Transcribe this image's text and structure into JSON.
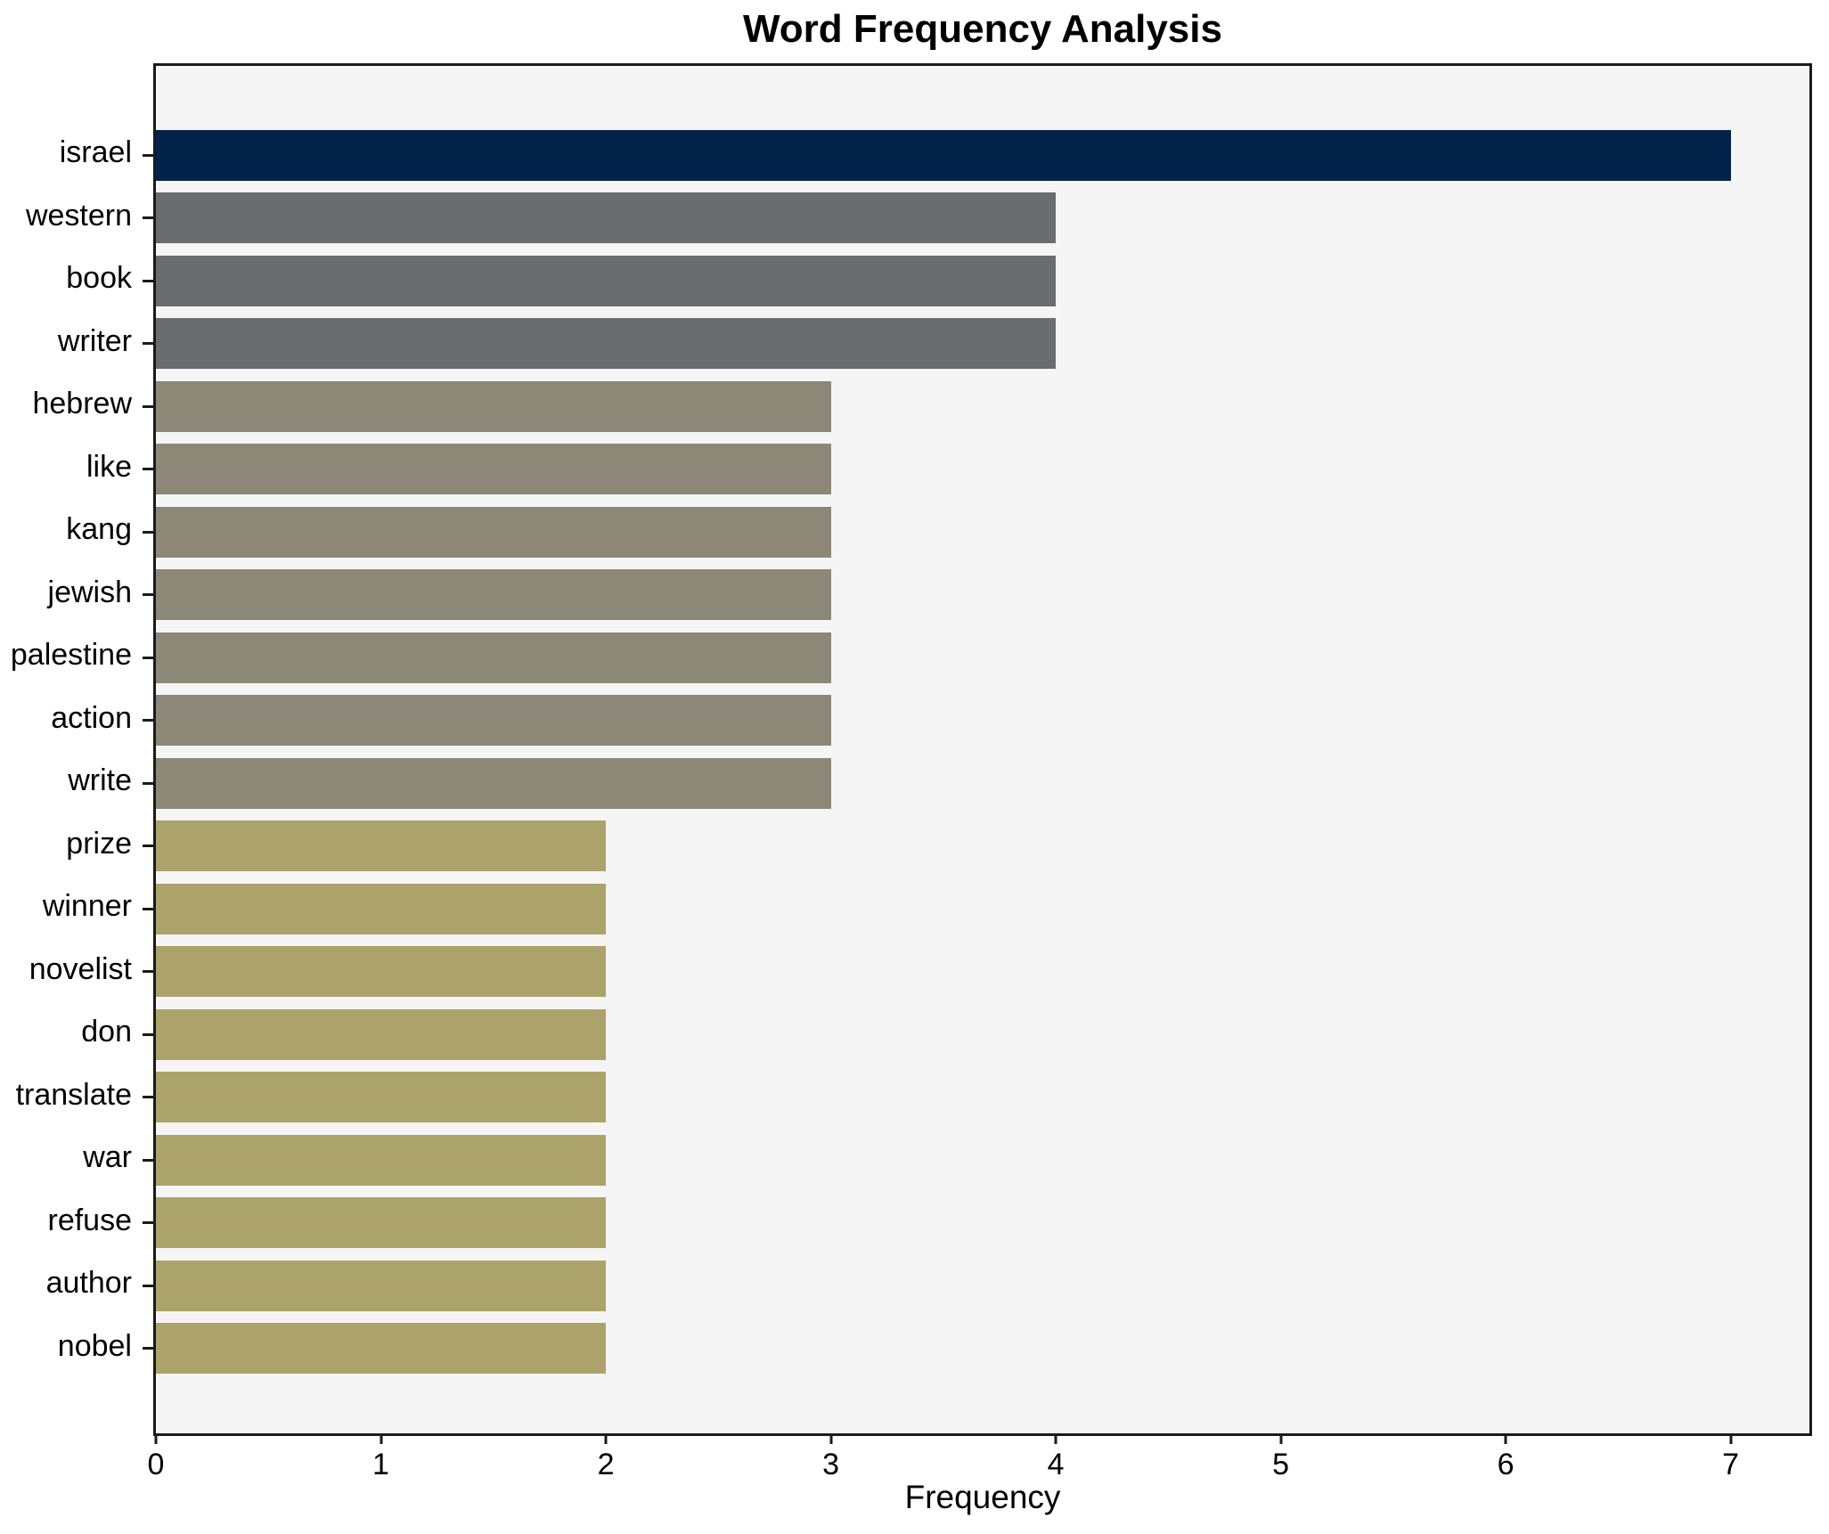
{
  "chart_data": {
    "type": "bar",
    "orientation": "horizontal",
    "title": "Word Frequency Analysis",
    "xlabel": "Frequency",
    "ylabel": "",
    "grid": false,
    "legend_position": "none",
    "xlim": [
      0,
      7.35
    ],
    "x_ticks": [
      "0",
      "1",
      "2",
      "3",
      "4",
      "5",
      "6",
      "7"
    ],
    "categories": [
      "israel",
      "western",
      "book",
      "writer",
      "hebrew",
      "like",
      "kang",
      "jewish",
      "palestine",
      "action",
      "write",
      "prize",
      "winner",
      "novelist",
      "don",
      "translate",
      "war",
      "refuse",
      "author",
      "nobel"
    ],
    "values": [
      7,
      4,
      4,
      4,
      3,
      3,
      3,
      3,
      3,
      3,
      3,
      2,
      2,
      2,
      2,
      2,
      2,
      2,
      2,
      2
    ],
    "bar_colors": [
      "#012349",
      "#6b6c6e",
      "#6b6c6e",
      "#6b6c6e",
      "#8d8777",
      "#8d8777",
      "#8d8777",
      "#8d8777",
      "#8d8777",
      "#8d8777",
      "#8d8777",
      "#aba369",
      "#aba369",
      "#aba369",
      "#aba369",
      "#aba369",
      "#aba369",
      "#aba369",
      "#aba369",
      "#aba369"
    ],
    "colors": {
      "figure_background": "#ffffff",
      "plot_background": "#f5f5f6",
      "spine": "#1a1a1a",
      "text": "#000000",
      "bar_by_value": {
        "7": "#012349",
        "4": "#6b6c6e",
        "3": "#8d8777",
        "2": "#aba369"
      }
    }
  }
}
